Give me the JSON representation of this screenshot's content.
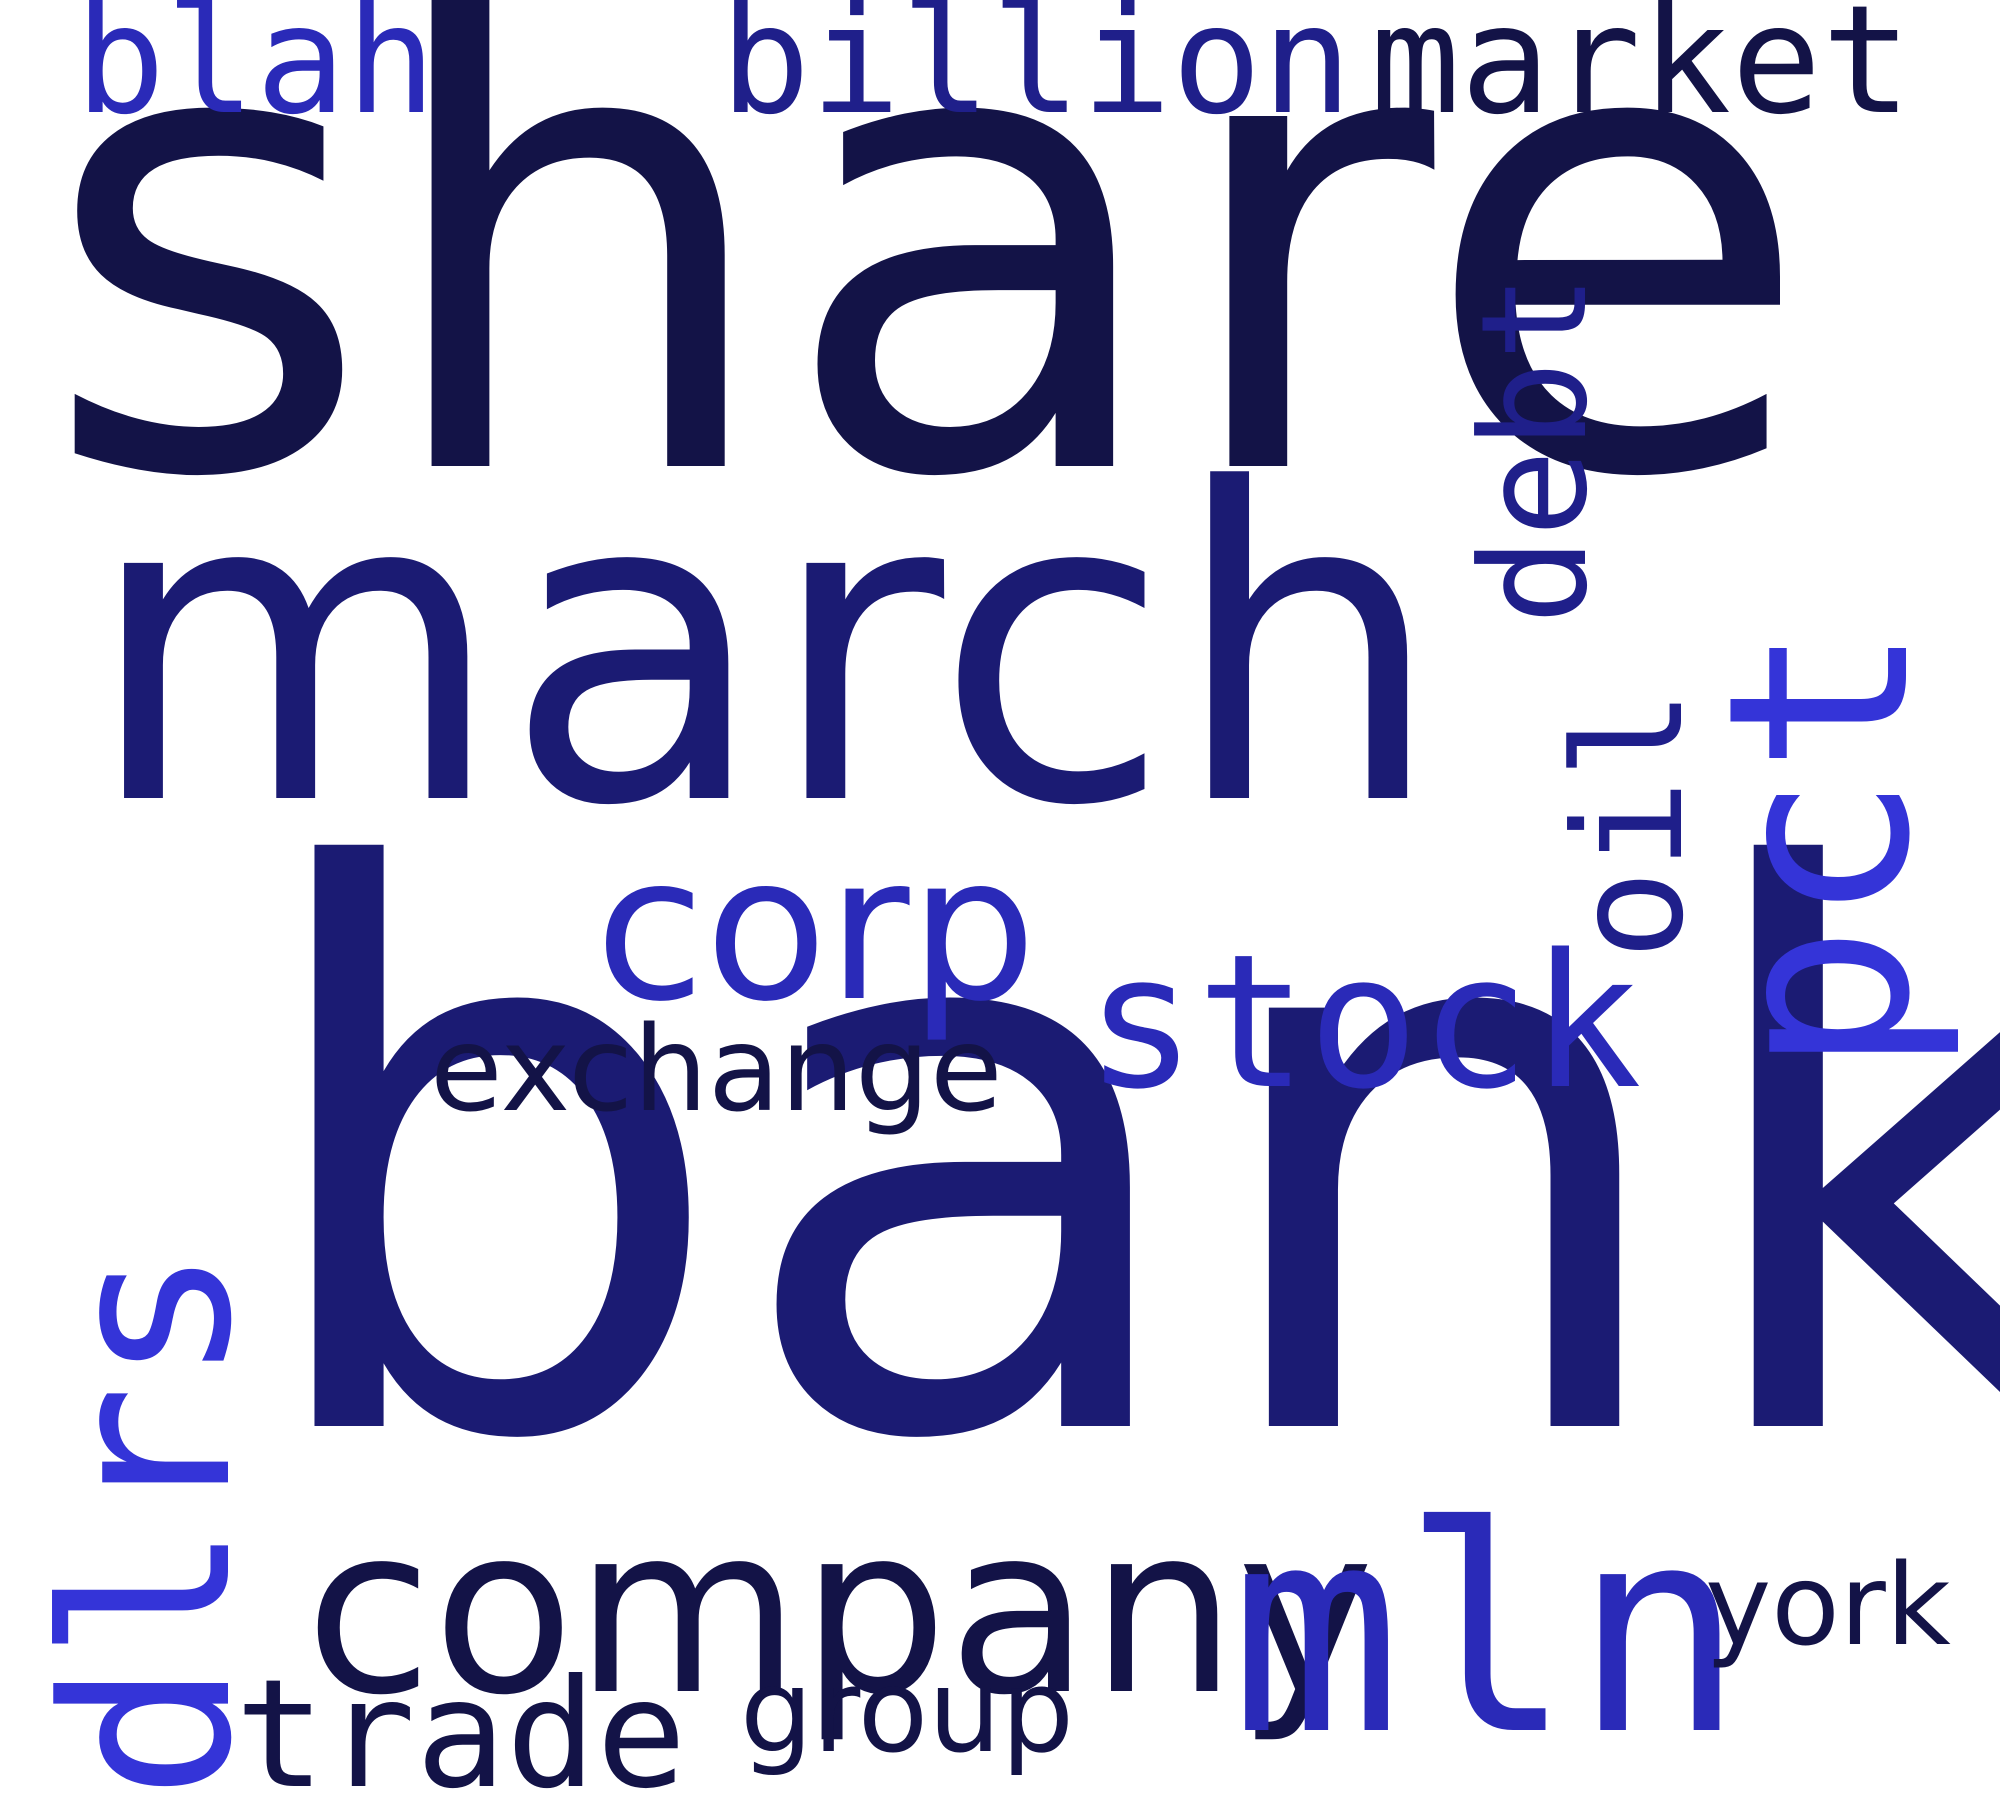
{
  "background": "#ffffff",
  "palette": {
    "ink": "#131347",
    "navy": "#1b1b73",
    "deep": "#1f1f8a",
    "royal": "#2a2ab8",
    "blue": "#3434d8"
  },
  "words": {
    "share": "share",
    "march": "march",
    "bank": "bank",
    "blah": "blah",
    "billion": "billion",
    "market": "market",
    "corp": "corp",
    "stock": "stock",
    "exchange": "exchange",
    "company": "company",
    "mln": "mln",
    "york": "york",
    "group": "group",
    "trade": "trade",
    "debt": "debt",
    "oil": "oil",
    "pct": "pct",
    "dlrs": "dlrs"
  }
}
